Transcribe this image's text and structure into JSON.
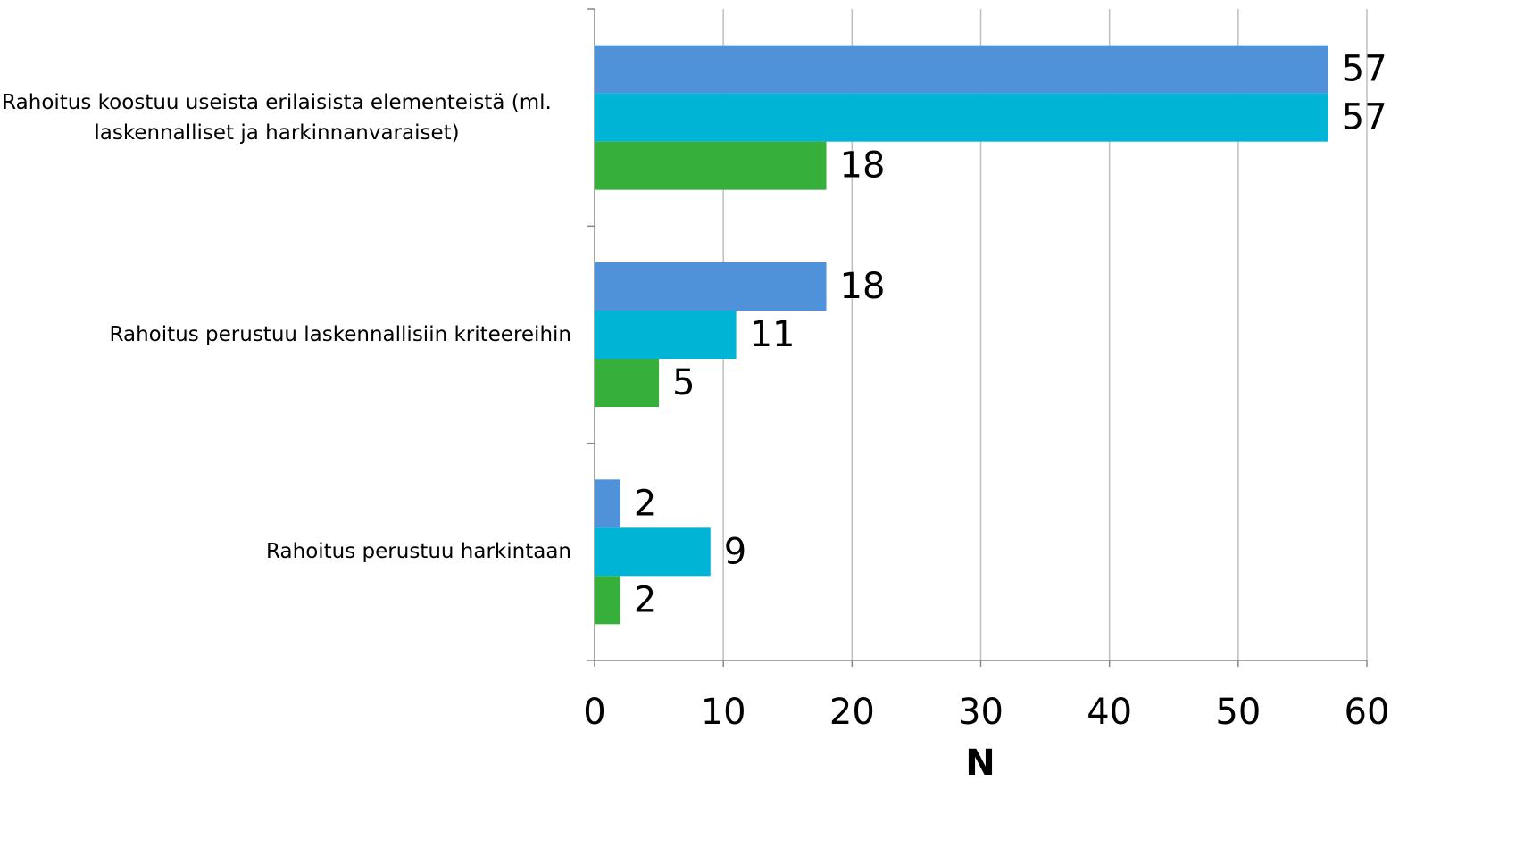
{
  "chart_data": {
    "type": "hbar",
    "categories": [
      "Rahoitus koostuu useista erilaisista elementeistä (ml. laskennalliset ja harkinnanvaraiset)",
      "Rahoitus perustuu laskennallisiin kriteereihin",
      "Rahoitus perustuu harkintaan"
    ],
    "series": [
      {
        "color": "#4f92da",
        "values": [
          57,
          18,
          2
        ]
      },
      {
        "color": "#00b4d6",
        "values": [
          57,
          11,
          9
        ]
      },
      {
        "color": "#36b03a",
        "values": [
          18,
          5,
          2
        ]
      }
    ],
    "xlabel": "N",
    "xlim": [
      0,
      60
    ],
    "xticks": [
      0,
      10,
      20,
      30,
      40,
      50,
      60
    ],
    "grid": true
  }
}
